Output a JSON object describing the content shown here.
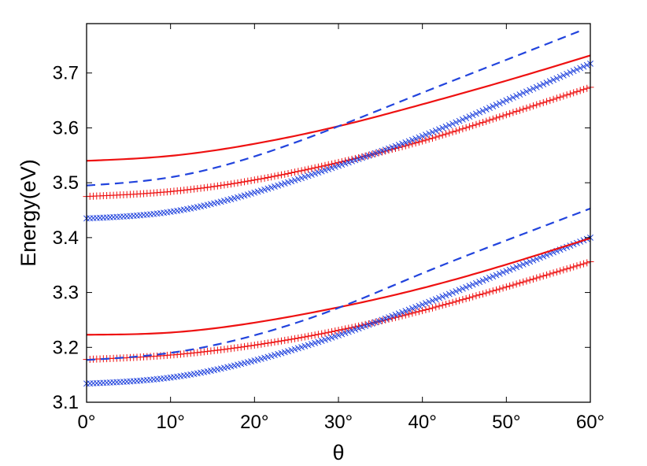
{
  "chart_data": {
    "type": "line",
    "title": "",
    "xlabel": "θ",
    "ylabel": "Energy(eV)",
    "xlim": [
      0,
      60
    ],
    "ylim": [
      3.1,
      3.79
    ],
    "x_ticks": [
      0,
      10,
      20,
      30,
      40,
      50,
      60
    ],
    "x_tick_labels": [
      "0°",
      "10°",
      "20°",
      "30°",
      "40°",
      "50°",
      "60°"
    ],
    "y_ticks": [
      3.1,
      3.2,
      3.3,
      3.4,
      3.5,
      3.6,
      3.7
    ],
    "y_tick_labels": [
      "3.1",
      "3.2",
      "3.3",
      "3.4",
      "3.5",
      "3.6",
      "3.7"
    ],
    "grid": false,
    "legend": null,
    "colors": {
      "red": "#ee1111",
      "blue": "#2244dd"
    },
    "series": [
      {
        "name": "upper solid red",
        "style": "solid",
        "color": "red",
        "x": [
          0,
          10,
          20,
          30,
          40,
          50,
          60
        ],
        "values": [
          3.54,
          3.549,
          3.571,
          3.603,
          3.643,
          3.686,
          3.732
        ]
      },
      {
        "name": "upper dashed blue",
        "style": "dashed",
        "color": "blue",
        "x": [
          0,
          10,
          20,
          30,
          40,
          50,
          59
        ],
        "values": [
          3.495,
          3.51,
          3.548,
          3.603,
          3.664,
          3.724,
          3.778
        ]
      },
      {
        "name": "upper red plus",
        "style": "marker-plus",
        "color": "red",
        "x": [
          0,
          10,
          20,
          30,
          40,
          50,
          60
        ],
        "values": [
          3.475,
          3.484,
          3.505,
          3.537,
          3.576,
          3.624,
          3.674
        ]
      },
      {
        "name": "upper blue x",
        "style": "marker-x",
        "color": "blue",
        "x": [
          0,
          10,
          20,
          30,
          40,
          50,
          60
        ],
        "values": [
          3.435,
          3.447,
          3.482,
          3.531,
          3.585,
          3.65,
          3.717
        ]
      },
      {
        "name": "lower solid red",
        "style": "solid",
        "color": "red",
        "x": [
          0,
          10,
          20,
          30,
          40,
          50,
          60
        ],
        "values": [
          3.223,
          3.227,
          3.245,
          3.273,
          3.308,
          3.351,
          3.399
        ]
      },
      {
        "name": "lower dashed blue",
        "style": "dashed",
        "color": "blue",
        "x": [
          0,
          10,
          20,
          30,
          40,
          50,
          60
        ],
        "values": [
          3.177,
          3.19,
          3.222,
          3.272,
          3.335,
          3.395,
          3.453
        ]
      },
      {
        "name": "lower red plus",
        "style": "marker-plus",
        "color": "red",
        "x": [
          0,
          10,
          20,
          30,
          40,
          50,
          60
        ],
        "values": [
          3.178,
          3.186,
          3.204,
          3.231,
          3.267,
          3.31,
          3.356
        ]
      },
      {
        "name": "lower blue x",
        "style": "marker-x",
        "color": "blue",
        "x": [
          0,
          10,
          20,
          30,
          40,
          50,
          60
        ],
        "values": [
          3.134,
          3.145,
          3.176,
          3.222,
          3.278,
          3.339,
          3.4
        ]
      }
    ]
  }
}
